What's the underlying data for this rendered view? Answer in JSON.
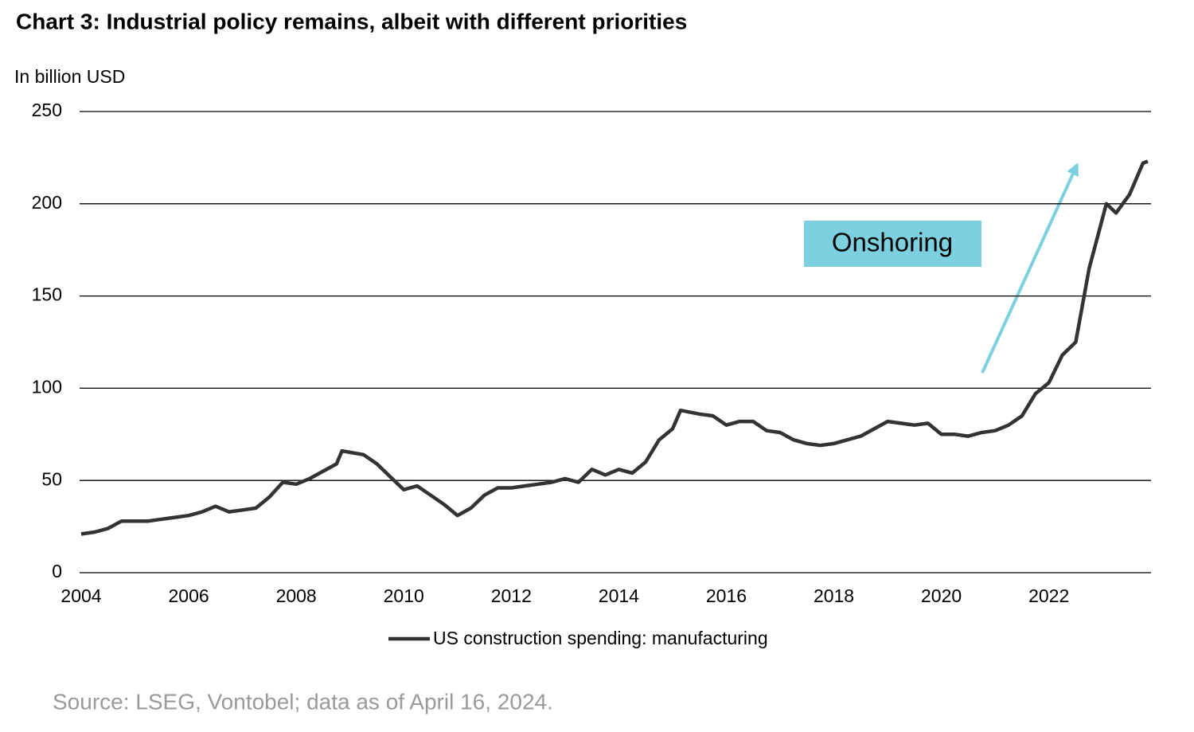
{
  "chart_data": {
    "type": "line",
    "title": "Chart 3: Industrial policy remains, albeit with different priorities",
    "y_label": "In billion USD",
    "annotation": "Onshoring",
    "source": "Source: LSEG, Vontobel; data as of April 16, 2024.",
    "x": [
      2004.0,
      2004.25,
      2004.5,
      2004.75,
      2005.0,
      2005.25,
      2005.5,
      2005.75,
      2006.0,
      2006.25,
      2006.5,
      2006.75,
      2007.0,
      2007.25,
      2007.5,
      2007.75,
      2008.0,
      2008.25,
      2008.5,
      2008.75,
      2008.85,
      2009.25,
      2009.5,
      2009.75,
      2010.0,
      2010.25,
      2010.5,
      2010.75,
      2011.0,
      2011.25,
      2011.5,
      2011.75,
      2012.0,
      2012.25,
      2012.5,
      2012.75,
      2013.0,
      2013.25,
      2013.5,
      2013.75,
      2014.0,
      2014.25,
      2014.5,
      2014.75,
      2015.0,
      2015.15,
      2015.5,
      2015.75,
      2016.0,
      2016.25,
      2016.5,
      2016.75,
      2017.0,
      2017.25,
      2017.5,
      2017.75,
      2018.0,
      2018.25,
      2018.5,
      2018.75,
      2019.0,
      2019.25,
      2019.5,
      2019.75,
      2020.0,
      2020.25,
      2020.5,
      2020.75,
      2021.0,
      2021.25,
      2021.5,
      2021.75,
      2022.0,
      2022.25,
      2022.5,
      2022.75,
      2023.07,
      2023.25,
      2023.5,
      2023.75,
      2023.84
    ],
    "series": [
      {
        "name": "US construction spending: manufacturing",
        "color": "#333333",
        "values": [
          21,
          22,
          24,
          28,
          28,
          28,
          29,
          30,
          31,
          33,
          36,
          33,
          34,
          35,
          41,
          49,
          48,
          51,
          55,
          59,
          66,
          64,
          59,
          52,
          45,
          47,
          42,
          37,
          31,
          35,
          42,
          46,
          46,
          47,
          48,
          49,
          51,
          49,
          56,
          53,
          56,
          54,
          60,
          72,
          78,
          88,
          86,
          85,
          80,
          82,
          82,
          77,
          76,
          72,
          70,
          69,
          70,
          72,
          74,
          78,
          82,
          81,
          80,
          81,
          75,
          75,
          74,
          76,
          77,
          80,
          85,
          97,
          103,
          118,
          125,
          165,
          200,
          195,
          205,
          222,
          223
        ]
      }
    ],
    "xlim": [
      2004,
      2023.9
    ],
    "xticks": [
      2004,
      2006,
      2008,
      2010,
      2012,
      2014,
      2016,
      2018,
      2020,
      2022
    ],
    "ylim": [
      0,
      250
    ],
    "yticks": [
      0,
      50,
      100,
      150,
      200,
      250
    ],
    "grid": true
  }
}
